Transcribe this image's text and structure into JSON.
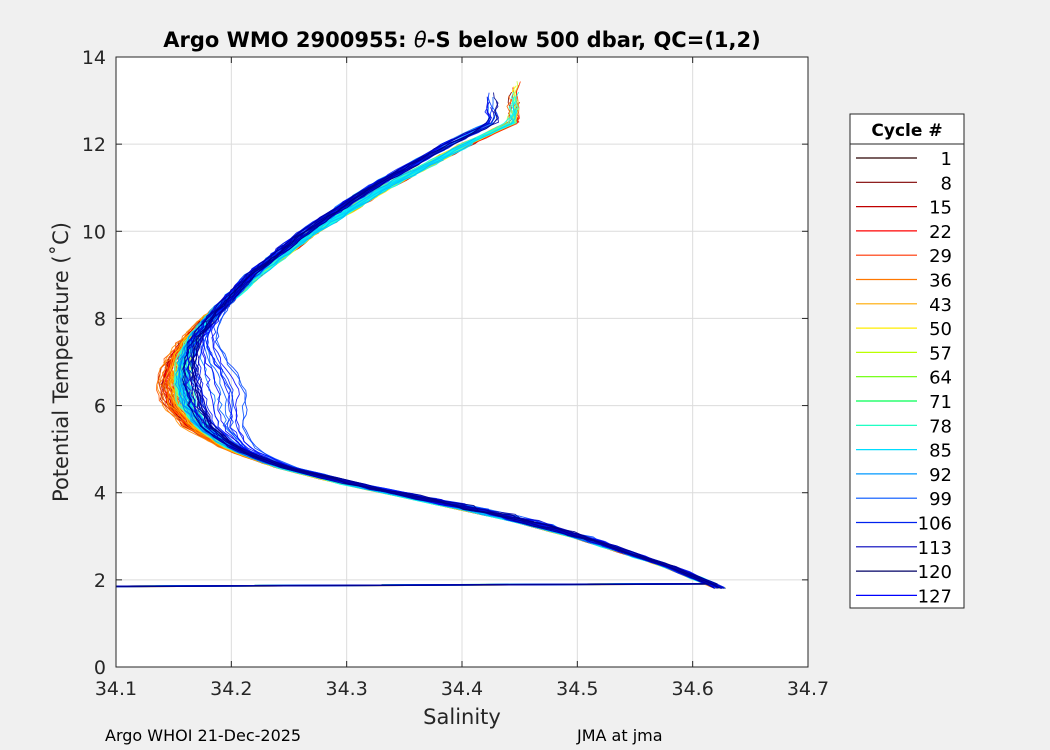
{
  "chart_data": {
    "type": "line",
    "title": "Argo WMO 2900955: θ-S below 500 dbar,  QC=(1,2)",
    "title_parts": {
      "prefix": "Argo WMO 2900955: ",
      "theta": "θ",
      "suffix": "-S below 500 dbar,  QC=(1,2)"
    },
    "xlabel": "Salinity",
    "ylabel": "Potential Temperature (˚C)",
    "xlim": [
      34.1,
      34.7
    ],
    "ylim": [
      0,
      14
    ],
    "xticks": [
      34.1,
      34.2,
      34.3,
      34.4,
      34.5,
      34.6,
      34.7
    ],
    "xtick_labels": [
      "34.1",
      "34.2",
      "34.3",
      "34.4",
      "34.5",
      "34.6",
      "34.7"
    ],
    "yticks": [
      0,
      2,
      4,
      6,
      8,
      10,
      12,
      14
    ],
    "ytick_labels": [
      "0",
      "2",
      "4",
      "6",
      "8",
      "10",
      "12",
      "14"
    ],
    "grid": true,
    "legend": {
      "title": "Cycle #",
      "position": "right",
      "entries": [
        {
          "label": "1",
          "color": "#2a0000"
        },
        {
          "label": "8",
          "color": "#7f0000"
        },
        {
          "label": "15",
          "color": "#c00000"
        },
        {
          "label": "22",
          "color": "#ff0000"
        },
        {
          "label": "29",
          "color": "#ff3300"
        },
        {
          "label": "36",
          "color": "#ff7700"
        },
        {
          "label": "43",
          "color": "#ffaa00"
        },
        {
          "label": "50",
          "color": "#ffee00"
        },
        {
          "label": "57",
          "color": "#bbff00"
        },
        {
          "label": "64",
          "color": "#66ff00"
        },
        {
          "label": "71",
          "color": "#00ff55"
        },
        {
          "label": "78",
          "color": "#00ffbb"
        },
        {
          "label": "85",
          "color": "#00ddff"
        },
        {
          "label": "92",
          "color": "#0099ff"
        },
        {
          "label": "99",
          "color": "#0055ff"
        },
        {
          "label": "106",
          "color": "#0022ee"
        },
        {
          "label": "113",
          "color": "#0000bb"
        },
        {
          "label": "120",
          "color": "#000066"
        },
        {
          "label": "127",
          "color": "#0000ff"
        }
      ]
    },
    "base_profile": [
      {
        "s": 34.625,
        "t": 1.8
      },
      {
        "s": 34.58,
        "t": 2.3
      },
      {
        "s": 34.51,
        "t": 2.9
      },
      {
        "s": 34.44,
        "t": 3.4
      },
      {
        "s": 34.37,
        "t": 3.8
      },
      {
        "s": 34.3,
        "t": 4.2
      },
      {
        "s": 34.24,
        "t": 4.6
      },
      {
        "s": 34.2,
        "t": 5.0
      },
      {
        "s": 34.17,
        "t": 5.5
      },
      {
        "s": 34.155,
        "t": 6.0
      },
      {
        "s": 34.15,
        "t": 6.5
      },
      {
        "s": 34.153,
        "t": 7.0
      },
      {
        "s": 34.163,
        "t": 7.5
      },
      {
        "s": 34.18,
        "t": 8.0
      },
      {
        "s": 34.2,
        "t": 8.5
      },
      {
        "s": 34.22,
        "t": 9.0
      },
      {
        "s": 34.245,
        "t": 9.5
      },
      {
        "s": 34.27,
        "t": 10.0
      },
      {
        "s": 34.3,
        "t": 10.5
      },
      {
        "s": 34.33,
        "t": 11.0
      },
      {
        "s": 34.365,
        "t": 11.5
      },
      {
        "s": 34.4,
        "t": 12.0
      },
      {
        "s": 34.44,
        "t": 12.5
      }
    ]
  },
  "footer": {
    "left": "Argo WHOI 21-Dec-2025",
    "right": "JMA at jma"
  }
}
